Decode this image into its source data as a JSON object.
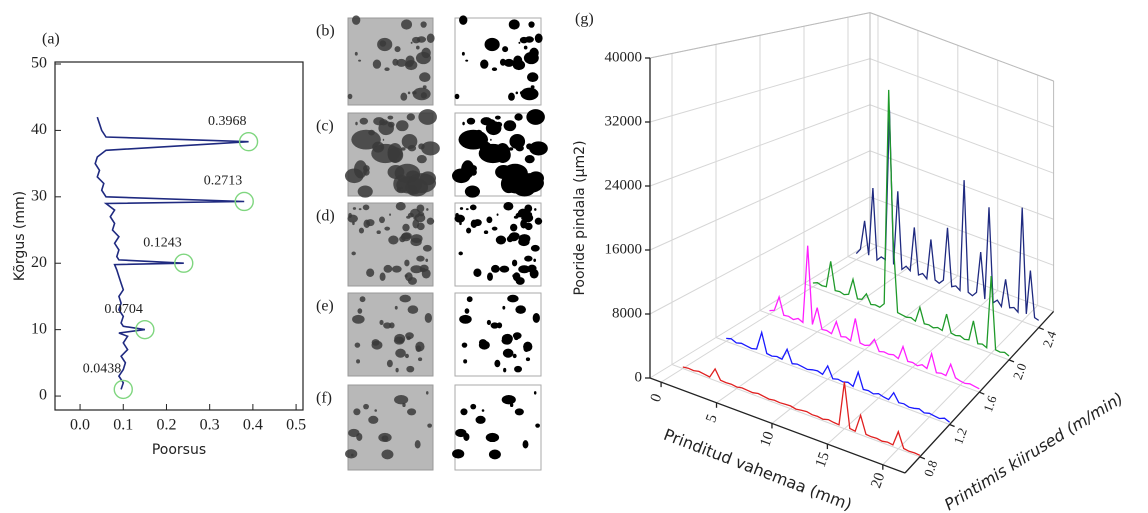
{
  "chart_data": [
    {
      "type": "line",
      "panel_label": "(a)",
      "x_label": "Poorsus",
      "y_label": "Kõrgus (mm)",
      "xlim": [
        -0.058,
        0.516
      ],
      "xticks": [
        {
          "value": 0,
          "label": "0.0"
        },
        0.1,
        0.2,
        0.3,
        0.4,
        0.5
      ],
      "ylim": [
        -2.1,
        50.3
      ],
      "yticks": [
        0,
        10,
        20,
        30,
        40,
        50
      ],
      "color": "#1f2a80",
      "x": [
        0.095,
        0.1,
        0.09,
        0.1,
        0.105,
        0.095,
        0.11,
        0.1,
        0.11,
        0.09,
        0.15,
        0.1,
        0.095,
        0.1,
        0.09,
        0.095,
        0.09,
        0.1,
        0.095,
        0.09,
        0.085,
        0.08,
        0.24,
        0.09,
        0.085,
        0.09,
        0.08,
        0.09,
        0.075,
        0.08,
        0.07,
        0.08,
        0.06,
        0.38,
        0.06,
        0.05,
        0.055,
        0.04,
        0.045,
        0.035,
        0.04,
        0.06,
        0.39,
        0.06,
        0.05,
        0.045,
        0.04
      ],
      "values": [
        1,
        2,
        3,
        4,
        5,
        6,
        7,
        8,
        9,
        9.5,
        10,
        10.5,
        11,
        12,
        13,
        14,
        15,
        16,
        17,
        18,
        19,
        19.8,
        20,
        20.5,
        21,
        22,
        23,
        24,
        25,
        26,
        27,
        28,
        29,
        29.3,
        30,
        31,
        32,
        33,
        34,
        35,
        36,
        37,
        38.3,
        39,
        40,
        41,
        42
      ],
      "annotations": [
        {
          "text": "0.3968",
          "x": 0.39,
          "y": 38.3
        },
        {
          "text": "0.2713",
          "x": 0.38,
          "y": 29.3
        },
        {
          "text": "0.1243",
          "x": 0.24,
          "y": 20
        },
        {
          "text": "0.0704",
          "x": 0.15,
          "y": 10
        },
        {
          "text": "0.0438",
          "x": 0.1,
          "y": 1
        }
      ]
    },
    {
      "type": "waterfall",
      "panel_label": "(g)",
      "x_label": "Prinditud vahemaa (mm)",
      "y_label": "Printimis kiirused (m/min)",
      "z_label": "Pooride pindala (μm2)",
      "xlim": [
        -1,
        22
      ],
      "xticks": [
        0,
        5,
        10,
        15,
        20
      ],
      "ylim": [
        0.6,
        2.6
      ],
      "yticks": [
        0.8,
        1.2,
        1.6,
        {
          "value": 2,
          "label": "2.0"
        },
        2.4
      ],
      "zlim": [
        0,
        40000
      ],
      "zticks": [
        0,
        8000,
        16000,
        24000,
        32000,
        40000
      ],
      "grid": true,
      "x": [
        0,
        0.5,
        1,
        1.5,
        2,
        2.5,
        3,
        3.5,
        4,
        4.5,
        5,
        5.5,
        6,
        6.5,
        7,
        7.5,
        8,
        8.5,
        9,
        9.5,
        10,
        10.5,
        11,
        11.5,
        12,
        12.5,
        13,
        13.5,
        14,
        14.5,
        15,
        15.5,
        16,
        16.5,
        17,
        17.5,
        18,
        18.5,
        19,
        19.5,
        20,
        20.5,
        21,
        21.5,
        22
      ],
      "series": [
        {
          "speed": 0.8,
          "color": "#e02020",
          "values": [
            200,
            300,
            250,
            400,
            300,
            200,
            1500,
            300,
            250,
            300,
            200,
            350,
            300,
            250,
            400,
            300,
            200,
            300,
            250,
            300,
            350,
            200,
            300,
            400,
            250,
            300,
            200,
            400,
            300,
            250,
            6000,
            300,
            200,
            2500,
            300,
            250,
            300,
            200,
            350,
            250,
            2200,
            300,
            200,
            250,
            200
          ]
        },
        {
          "speed": 1.2,
          "color": "#1a1aff",
          "values": [
            400,
            600,
            300,
            500,
            400,
            300,
            500,
            3000,
            400,
            300,
            500,
            400,
            2000,
            300,
            500,
            400,
            300,
            500,
            600,
            400,
            1800,
            300,
            500,
            400,
            600,
            300,
            2500,
            400,
            500,
            300,
            600,
            400,
            300,
            1500,
            400,
            500,
            300,
            400,
            600,
            300,
            500,
            400,
            300,
            600,
            300
          ]
        },
        {
          "speed": 1.6,
          "color": "#ff20ff",
          "values": [
            500,
            800,
            3000,
            600,
            700,
            500,
            900,
            600,
            12000,
            800,
            3500,
            600,
            700,
            500,
            2500,
            600,
            800,
            500,
            4000,
            700,
            600,
            900,
            2000,
            500,
            700,
            600,
            800,
            500,
            2500,
            600,
            700,
            500,
            900,
            600,
            3000,
            500,
            700,
            600,
            2500,
            800,
            600,
            500,
            700,
            600,
            500
          ]
        },
        {
          "speed": 2.0,
          "color": "#1f9a2a",
          "values": [
            600,
            900,
            700,
            800,
            5000,
            700,
            800,
            600,
            900,
            3500,
            700,
            900,
            2000,
            600,
            800,
            700,
            1500,
            35000,
            12000,
            900,
            800,
            700,
            900,
            600,
            3000,
            700,
            800,
            600,
            900,
            700,
            3500,
            800,
            700,
            900,
            600,
            800,
            4000,
            700,
            900,
            600,
            12000,
            800,
            700,
            900,
            600
          ]
        },
        {
          "speed": 2.4,
          "color": "#1f2a80",
          "values": [
            1000,
            2000,
            7000,
            1500,
            13000,
            1200,
            2000,
            1800,
            27000,
            1500,
            14000,
            1200,
            2000,
            1500,
            9000,
            1300,
            1800,
            1200,
            8000,
            1500,
            1200,
            2000,
            11000,
            1400,
            1800,
            1300,
            20000,
            1500,
            1200,
            2000,
            9000,
            1400,
            17000,
            1300,
            2000,
            1200,
            6000,
            1500,
            1800,
            1300,
            19000,
            1500,
            9000,
            1400,
            1200
          ]
        }
      ]
    }
  ],
  "micrographs": {
    "labels": [
      "(b)",
      "(c)",
      "(d)",
      "(e)",
      "(f)"
    ]
  }
}
